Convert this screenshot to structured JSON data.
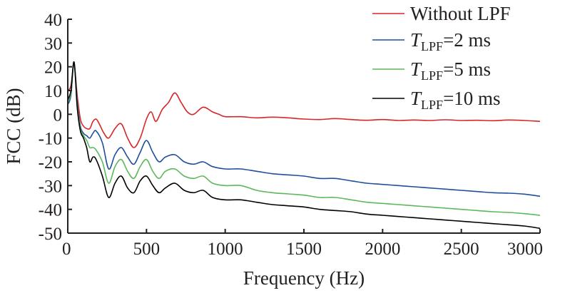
{
  "chart_data": {
    "type": "line",
    "xlabel": "Frequency (Hz)",
    "ylabel": "FCC (dB)",
    "xlim": [
      0,
      3000
    ],
    "ylim": [
      -50,
      40
    ],
    "xticks": [
      0,
      500,
      1000,
      1500,
      2000,
      2500,
      3000
    ],
    "yticks": [
      40,
      30,
      20,
      10,
      0,
      -10,
      -20,
      -30,
      -40,
      -50
    ],
    "grid": false,
    "legend_position": "top-right",
    "series": [
      {
        "name": "Without LPF",
        "legend": {
          "main": "Without LPF",
          "symbol": "",
          "sub": "",
          "rest": ""
        },
        "color": "#d62728",
        "x": [
          0,
          20,
          40,
          60,
          80,
          100,
          120,
          140,
          160,
          180,
          200,
          230,
          260,
          300,
          340,
          380,
          420,
          460,
          500,
          530,
          560,
          600,
          640,
          680,
          720,
          760,
          800,
          860,
          920,
          960,
          1000,
          1100,
          1200,
          1300,
          1400,
          1500,
          1600,
          1700,
          1800,
          1900,
          2000,
          2100,
          2200,
          2300,
          2400,
          2500,
          2600,
          2700,
          2800,
          2900,
          3000
        ],
        "y": [
          10,
          12,
          21,
          8,
          -2,
          -5,
          -6,
          -6,
          -3,
          -2,
          -4,
          -8,
          -10,
          -6,
          -4,
          -10,
          -14,
          -10,
          -2,
          1,
          -3,
          2,
          5,
          9,
          5,
          1,
          0,
          3,
          1,
          0,
          -1,
          -1,
          -1.5,
          -1.2,
          -1.5,
          -2,
          -2.2,
          -1.8,
          -2.2,
          -2.5,
          -2.2,
          -2.6,
          -2.4,
          -2.6,
          -2.3,
          -2.6,
          -2.5,
          -2.7,
          -2.4,
          -2.6,
          -3
        ]
      },
      {
        "name": "TLPF=2 ms",
        "legend": {
          "main": "",
          "symbol": "T",
          "sub": "LPF",
          "rest": "=2 ms"
        },
        "color": "#1f4e9c",
        "x": [
          0,
          20,
          40,
          60,
          80,
          100,
          120,
          140,
          160,
          180,
          220,
          260,
          300,
          340,
          380,
          420,
          460,
          500,
          540,
          580,
          620,
          680,
          740,
          800,
          860,
          920,
          1000,
          1100,
          1200,
          1300,
          1400,
          1500,
          1600,
          1700,
          1800,
          1900,
          2000,
          2100,
          2200,
          2300,
          2400,
          2500,
          2600,
          2700,
          2800,
          2900,
          3000
        ],
        "y": [
          4,
          8,
          22,
          5,
          -5,
          -8,
          -9,
          -10,
          -8,
          -7,
          -12,
          -23,
          -17,
          -14,
          -18,
          -21,
          -16,
          -11,
          -16,
          -20,
          -18,
          -17,
          -20,
          -21,
          -20,
          -22,
          -23,
          -23,
          -24,
          -25,
          -25.5,
          -26,
          -27,
          -27,
          -28,
          -29,
          -29.5,
          -30,
          -30.5,
          -31,
          -31.5,
          -32,
          -32.5,
          -33,
          -33.2,
          -33.6,
          -34.5
        ]
      },
      {
        "name": "TLPF=5 ms",
        "legend": {
          "main": "",
          "symbol": "T",
          "sub": "LPF",
          "rest": "=5 ms"
        },
        "color": "#5cb85c",
        "x": [
          0,
          20,
          40,
          60,
          80,
          100,
          120,
          140,
          160,
          180,
          220,
          260,
          300,
          340,
          380,
          420,
          460,
          500,
          540,
          580,
          620,
          680,
          740,
          800,
          860,
          920,
          1000,
          1100,
          1200,
          1300,
          1400,
          1500,
          1600,
          1700,
          1800,
          1900,
          2000,
          2100,
          2200,
          2300,
          2400,
          2500,
          2600,
          2700,
          2800,
          2900,
          3000
        ],
        "y": [
          5,
          9,
          22,
          4,
          -6,
          -9,
          -11,
          -14,
          -14,
          -15,
          -20,
          -29,
          -22,
          -19,
          -24,
          -27,
          -22,
          -19,
          -24,
          -27,
          -24,
          -23,
          -26,
          -27,
          -26,
          -29,
          -30,
          -30,
          -32,
          -33,
          -33.5,
          -34,
          -35,
          -35,
          -36,
          -37,
          -37.5,
          -38,
          -38.5,
          -39,
          -39.5,
          -40,
          -40.5,
          -41,
          -41.3,
          -41.8,
          -42.5
        ]
      },
      {
        "name": "TLPF=10 ms",
        "legend": {
          "main": "",
          "symbol": "T",
          "sub": "LPF",
          "rest": "=10 ms"
        },
        "color": "#000000",
        "x": [
          0,
          20,
          40,
          60,
          80,
          100,
          120,
          140,
          160,
          180,
          220,
          260,
          300,
          340,
          380,
          420,
          460,
          500,
          540,
          580,
          620,
          680,
          740,
          800,
          860,
          920,
          1000,
          1100,
          1200,
          1300,
          1400,
          1500,
          1600,
          1700,
          1800,
          1900,
          2000,
          2100,
          2200,
          2300,
          2400,
          2500,
          2600,
          2700,
          2800,
          2900,
          3000
        ],
        "y": [
          6,
          10,
          22,
          3,
          -7,
          -10,
          -14,
          -20,
          -18,
          -19,
          -26,
          -35,
          -29,
          -26,
          -31,
          -33,
          -28,
          -26,
          -30,
          -33,
          -31,
          -29,
          -32,
          -33,
          -32,
          -35,
          -36,
          -36,
          -37,
          -38,
          -38.5,
          -39,
          -40,
          -40.5,
          -41,
          -42,
          -42.5,
          -43,
          -43.5,
          -44,
          -44.5,
          -45,
          -45.5,
          -46,
          -46.5,
          -47,
          -48
        ]
      }
    ]
  }
}
